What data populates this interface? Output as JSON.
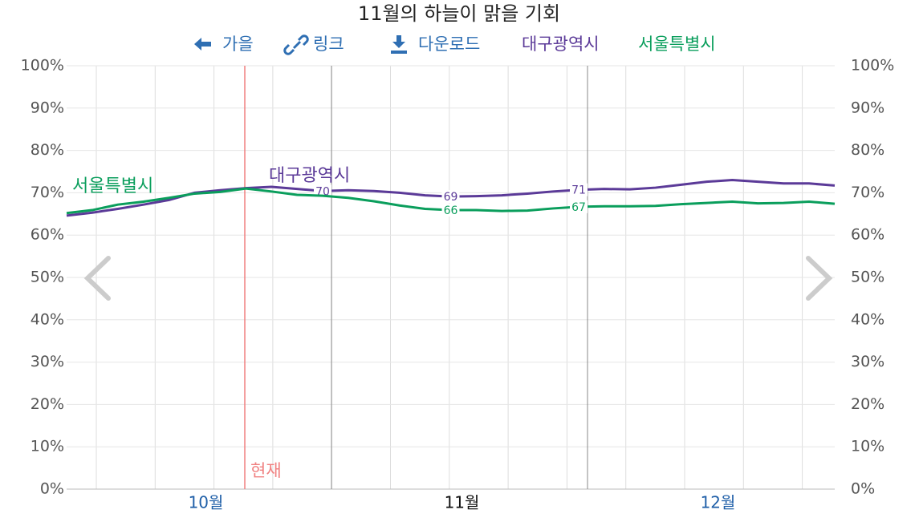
{
  "chart_data": {
    "type": "line",
    "title": "11월의 하늘이 맑을 기회",
    "nav": [
      "가을",
      "링크",
      "다운로드"
    ],
    "months": [
      "10월",
      "11월",
      "12월"
    ],
    "ylim": [
      0,
      100
    ],
    "yticks": [
      {
        "value": 0,
        "label": "0%"
      },
      {
        "value": 10,
        "label": "10%"
      },
      {
        "value": 20,
        "label": "20%"
      },
      {
        "value": 30,
        "label": "30%"
      },
      {
        "value": 40,
        "label": "40%"
      },
      {
        "value": 50,
        "label": "50%"
      },
      {
        "value": 60,
        "label": "60%"
      },
      {
        "value": 70,
        "label": "70%"
      },
      {
        "value": 80,
        "label": "80%"
      },
      {
        "value": 90,
        "label": "90%"
      },
      {
        "value": 100,
        "label": "100%"
      }
    ],
    "grid": true,
    "annotation": "현재",
    "series": [
      {
        "name": "대구광역시",
        "color": "#5b3a98",
        "values": [
          64.6,
          65.3,
          66.2,
          67.2,
          68.3,
          70.0,
          70.6,
          71.1,
          71.4,
          70.9,
          70.4,
          70.6,
          70.4,
          70.0,
          69.4,
          69.1,
          69.2,
          69.4,
          69.8,
          70.3,
          70.7,
          70.9,
          70.8,
          71.2,
          71.9,
          72.6,
          73.0,
          72.6,
          72.2,
          72.2,
          71.7
        ],
        "value_labels": [
          null,
          null,
          null,
          null,
          null,
          null,
          null,
          null,
          null,
          null,
          "70",
          null,
          null,
          null,
          null,
          "69",
          null,
          null,
          null,
          null,
          "71",
          null,
          null,
          null,
          null,
          null,
          null,
          null,
          null,
          null,
          null
        ]
      },
      {
        "name": "서울특별시",
        "color": "#0a9e5c",
        "values": [
          65.2,
          65.9,
          67.2,
          67.9,
          68.8,
          69.8,
          70.2,
          71.0,
          70.3,
          69.5,
          69.3,
          68.8,
          68.0,
          67.0,
          66.2,
          65.9,
          65.9,
          65.7,
          65.8,
          66.3,
          66.7,
          66.8,
          66.8,
          66.9,
          67.3,
          67.6,
          67.9,
          67.5,
          67.6,
          67.9,
          67.4
        ],
        "value_labels": [
          null,
          null,
          null,
          null,
          null,
          null,
          null,
          null,
          null,
          null,
          null,
          null,
          null,
          null,
          null,
          "66",
          null,
          null,
          null,
          null,
          "67",
          null,
          null,
          null,
          null,
          null,
          null,
          null,
          null,
          null,
          null
        ]
      }
    ]
  }
}
